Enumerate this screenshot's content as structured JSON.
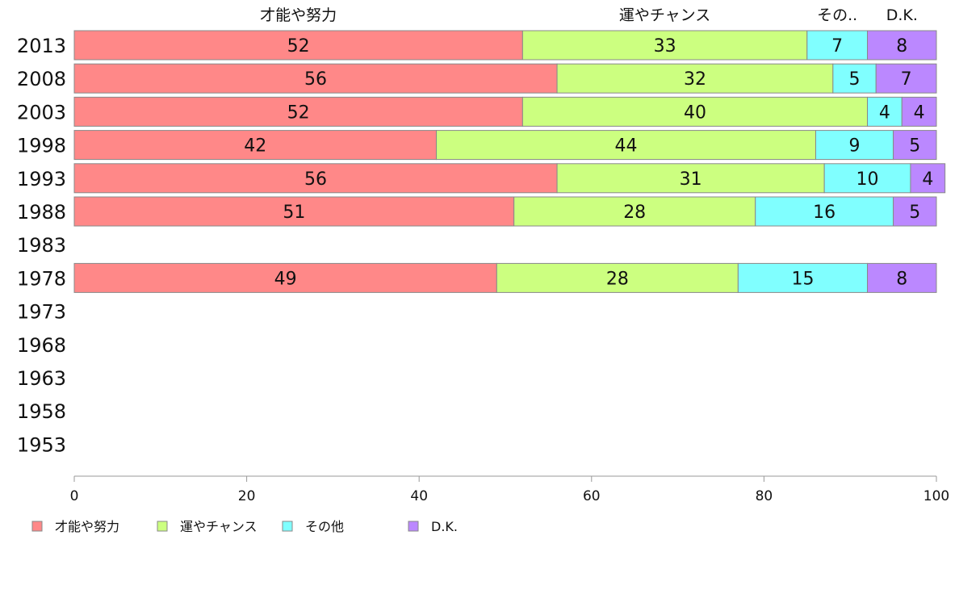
{
  "chart_data": {
    "type": "bar",
    "orientation": "horizontal",
    "stacked": true,
    "categories": [
      "2013",
      "2008",
      "2003",
      "1998",
      "1993",
      "1988",
      "1983",
      "1978",
      "1973",
      "1968",
      "1963",
      "1958",
      "1953"
    ],
    "series": [
      {
        "name": "才能や努力",
        "color": "#ff8888",
        "values": [
          52,
          56,
          52,
          42,
          56,
          51,
          null,
          49,
          null,
          null,
          null,
          null,
          null
        ]
      },
      {
        "name": "運やチャンス",
        "color": "#ccff80",
        "values": [
          33,
          32,
          40,
          44,
          31,
          28,
          null,
          28,
          null,
          null,
          null,
          null,
          null
        ]
      },
      {
        "name": "その他",
        "color": "#80ffff",
        "values": [
          7,
          5,
          4,
          9,
          10,
          16,
          null,
          15,
          null,
          null,
          null,
          null,
          null
        ]
      },
      {
        "name": "D.K.",
        "color": "#bb88ff",
        "values": [
          8,
          7,
          4,
          5,
          4,
          5,
          null,
          8,
          null,
          null,
          null,
          null,
          null
        ]
      }
    ],
    "top_labels": [
      "才能や努力",
      "運やチャンス",
      "その..",
      "D.K."
    ],
    "xlim": [
      0,
      100
    ],
    "xticks": [
      "0",
      "20",
      "40",
      "60",
      "80",
      "100"
    ],
    "xlabel": "",
    "ylabel": "",
    "legend_position": "bottom-left",
    "grid": false
  }
}
